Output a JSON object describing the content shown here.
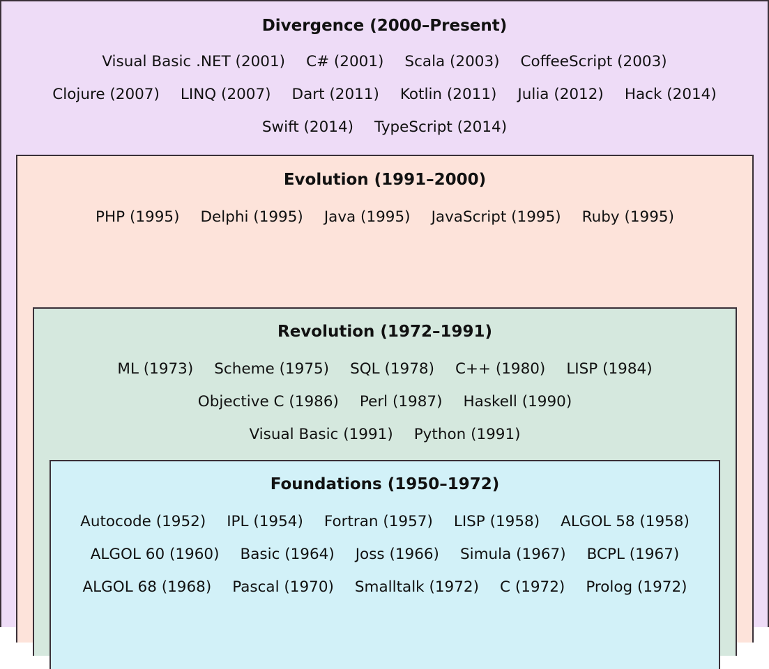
{
  "eras": [
    {
      "title": "Divergence (2000–Present)",
      "color": "#eedcf7",
      "rows": [
        [
          "Visual Basic .NET (2001)",
          "C# (2001)",
          "Scala (2003)",
          "CoffeeScript (2003)"
        ],
        [
          "Clojure (2007)",
          "LINQ (2007)",
          "Dart (2011)",
          "Kotlin (2011)",
          "Julia (2012)",
          "Hack (2014)"
        ],
        [
          "Swift (2014)",
          "TypeScript (2014)"
        ]
      ]
    },
    {
      "title": "Evolution (1991–2000)",
      "color": "#fde3da",
      "rows": [
        [
          "PHP (1995)",
          "Delphi (1995)",
          "Java (1995)",
          "JavaScript (1995)",
          "Ruby (1995)"
        ]
      ]
    },
    {
      "title": "Revolution (1972–1991)",
      "color": "#d5e8de",
      "rows": [
        [
          "ML (1973)",
          "Scheme (1975)",
          "SQL (1978)",
          "C++ (1980)",
          "LISP (1984)"
        ],
        [
          "Objective C (1986)",
          "Perl (1987)",
          "Haskell (1990)"
        ],
        [
          "Visual Basic (1991)",
          "Python (1991)"
        ]
      ]
    },
    {
      "title": "Foundations (1950–1972)",
      "color": "#d2f1f8",
      "rows": [
        [
          "Autocode (1952)",
          "IPL (1954)",
          "Fortran (1957)",
          "LISP (1958)",
          "ALGOL 58 (1958)"
        ],
        [
          "ALGOL 60 (1960)",
          "Basic (1964)",
          "Joss (1966)",
          "Simula (1967)",
          "BCPL (1967)"
        ],
        [
          "ALGOL 68 (1968)",
          "Pascal (1970)",
          "Smalltalk (1972)",
          "C (1972)",
          "Prolog (1972)"
        ]
      ]
    }
  ]
}
